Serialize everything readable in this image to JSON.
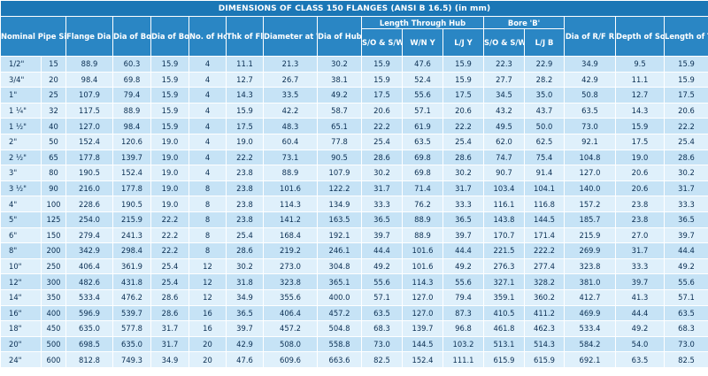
{
  "title": "DIMENSIONS OF CLASS 150 FLANGES (ANSI B 16.5) (in mm)",
  "headers": {
    "nominal": "Nominal Pipe Size",
    "flange_dia": "Flange Dia 'O'",
    "bolt_circle": "Dia of Bolt Circle 'A'",
    "bolt_holes": "Dia of Bolt Holes 'D'",
    "no_holes": "No. of Holes",
    "thk_flange": "Thk of Flange 'C'",
    "weld_bevel": "Diameter at Weld Bevel",
    "hub": "Dia of Hub 'E'",
    "length_group": "Length Through Hub",
    "len_so": "S/O & S/W Y",
    "len_wn": "W/N Y",
    "len_lj": "L/J Y",
    "bore_group": "Bore 'B'",
    "bore_so": "S/O & S/W B",
    "bore_lj": "L/J B",
    "rf": "Dia of R/F R",
    "socket": "Depth of Socket F",
    "threading": "Length of Threading"
  },
  "rows": [
    [
      "1/2\"",
      "15",
      "88.9",
      "60.3",
      "15.9",
      "4",
      "11.1",
      "21.3",
      "30.2",
      "15.9",
      "47.6",
      "15.9",
      "22.3",
      "22.9",
      "34.9",
      "9.5",
      "15.9"
    ],
    [
      "3/4\"",
      "20",
      "98.4",
      "69.8",
      "15.9",
      "4",
      "12.7",
      "26.7",
      "38.1",
      "15.9",
      "52.4",
      "15.9",
      "27.7",
      "28.2",
      "42.9",
      "11.1",
      "15.9"
    ],
    [
      "1\"",
      "25",
      "107.9",
      "79.4",
      "15.9",
      "4",
      "14.3",
      "33.5",
      "49.2",
      "17.5",
      "55.6",
      "17.5",
      "34.5",
      "35.0",
      "50.8",
      "12.7",
      "17.5"
    ],
    [
      "1 ¼\"",
      "32",
      "117.5",
      "88.9",
      "15.9",
      "4",
      "15.9",
      "42.2",
      "58.7",
      "20.6",
      "57.1",
      "20.6",
      "43.2",
      "43.7",
      "63.5",
      "14.3",
      "20.6"
    ],
    [
      "1 ½\"",
      "40",
      "127.0",
      "98.4",
      "15.9",
      "4",
      "17.5",
      "48.3",
      "65.1",
      "22.2",
      "61.9",
      "22.2",
      "49.5",
      "50.0",
      "73.0",
      "15.9",
      "22.2"
    ],
    [
      "2\"",
      "50",
      "152.4",
      "120.6",
      "19.0",
      "4",
      "19.0",
      "60.4",
      "77.8",
      "25.4",
      "63.5",
      "25.4",
      "62.0",
      "62.5",
      "92.1",
      "17.5",
      "25.4"
    ],
    [
      "2 ½\"",
      "65",
      "177.8",
      "139.7",
      "19.0",
      "4",
      "22.2",
      "73.1",
      "90.5",
      "28.6",
      "69.8",
      "28.6",
      "74.7",
      "75.4",
      "104.8",
      "19.0",
      "28.6"
    ],
    [
      "3\"",
      "80",
      "190.5",
      "152.4",
      "19.0",
      "4",
      "23.8",
      "88.9",
      "107.9",
      "30.2",
      "69.8",
      "30.2",
      "90.7",
      "91.4",
      "127.0",
      "20.6",
      "30.2"
    ],
    [
      "3 ½\"",
      "90",
      "216.0",
      "177.8",
      "19.0",
      "8",
      "23.8",
      "101.6",
      "122.2",
      "31.7",
      "71.4",
      "31.7",
      "103.4",
      "104.1",
      "140.0",
      "20.6",
      "31.7"
    ],
    [
      "4\"",
      "100",
      "228.6",
      "190.5",
      "19.0",
      "8",
      "23.8",
      "114.3",
      "134.9",
      "33.3",
      "76.2",
      "33.3",
      "116.1",
      "116.8",
      "157.2",
      "23.8",
      "33.3"
    ],
    [
      "5\"",
      "125",
      "254.0",
      "215.9",
      "22.2",
      "8",
      "23.8",
      "141.2",
      "163.5",
      "36.5",
      "88.9",
      "36.5",
      "143.8",
      "144.5",
      "185.7",
      "23.8",
      "36.5"
    ],
    [
      "6\"",
      "150",
      "279.4",
      "241.3",
      "22.2",
      "8",
      "25.4",
      "168.4",
      "192.1",
      "39.7",
      "88.9",
      "39.7",
      "170.7",
      "171.4",
      "215.9",
      "27.0",
      "39.7"
    ],
    [
      "8\"",
      "200",
      "342.9",
      "298.4",
      "22.2",
      "8",
      "28.6",
      "219.2",
      "246.1",
      "44.4",
      "101.6",
      "44.4",
      "221.5",
      "222.2",
      "269.9",
      "31.7",
      "44.4"
    ],
    [
      "10\"",
      "250",
      "406.4",
      "361.9",
      "25.4",
      "12",
      "30.2",
      "273.0",
      "304.8",
      "49.2",
      "101.6",
      "49.2",
      "276.3",
      "277.4",
      "323.8",
      "33.3",
      "49.2"
    ],
    [
      "12\"",
      "300",
      "482.6",
      "431.8",
      "25.4",
      "12",
      "31.8",
      "323.8",
      "365.1",
      "55.6",
      "114.3",
      "55.6",
      "327.1",
      "328.2",
      "381.0",
      "39.7",
      "55.6"
    ],
    [
      "14\"",
      "350",
      "533.4",
      "476.2",
      "28.6",
      "12",
      "34.9",
      "355.6",
      "400.0",
      "57.1",
      "127.0",
      "79.4",
      "359.1",
      "360.2",
      "412.7",
      "41.3",
      "57.1"
    ],
    [
      "16\"",
      "400",
      "596.9",
      "539.7",
      "28.6",
      "16",
      "36.5",
      "406.4",
      "457.2",
      "63.5",
      "127.0",
      "87.3",
      "410.5",
      "411.2",
      "469.9",
      "44.4",
      "63.5"
    ],
    [
      "18\"",
      "450",
      "635.0",
      "577.8",
      "31.7",
      "16",
      "39.7",
      "457.2",
      "504.8",
      "68.3",
      "139.7",
      "96.8",
      "461.8",
      "462.3",
      "533.4",
      "49.2",
      "68.3"
    ],
    [
      "20\"",
      "500",
      "698.5",
      "635.0",
      "31.7",
      "20",
      "42.9",
      "508.0",
      "558.8",
      "73.0",
      "144.5",
      "103.2",
      "513.1",
      "514.3",
      "584.2",
      "54.0",
      "73.0"
    ],
    [
      "24\"",
      "600",
      "812.8",
      "749.3",
      "34.9",
      "20",
      "47.6",
      "609.6",
      "663.6",
      "82.5",
      "152.4",
      "111.1",
      "615.9",
      "615.9",
      "692.1",
      "63.5",
      "82.5"
    ]
  ]
}
